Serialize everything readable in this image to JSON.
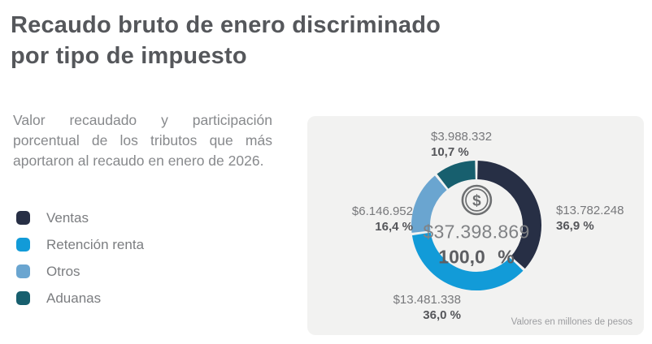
{
  "header": {
    "title_line1": "Recaudo bruto de enero discriminado",
    "title_line2": "por tipo de impuesto",
    "description": "Valor recaudado y participación porcentual de los tributos que más aportaron al recaudo en enero de 2026."
  },
  "chart_data": {
    "type": "pie",
    "subtype": "donut",
    "title": "Recaudo bruto de enero discriminado por tipo de impuesto",
    "unit_note": "Valores en millones de pesos",
    "start_angle_deg": 0,
    "direction": "clockwise",
    "legend_position": "left",
    "series": [
      {
        "name": "Ventas",
        "value": 13782248,
        "value_label": "$13.782.248",
        "pct": 36.9,
        "pct_label": "36,9 %",
        "color": "#272f45"
      },
      {
        "name": "Retención renta",
        "value": 13481338,
        "value_label": "$13.481.338",
        "pct": 36.0,
        "pct_label": "36,0 %",
        "color": "#129bd8"
      },
      {
        "name": "Otros",
        "value": 6146952,
        "value_label": "$6.146.952",
        "pct": 16.4,
        "pct_label": "16,4 %",
        "color": "#6aa5d0"
      },
      {
        "name": "Aduanas",
        "value": 3988332,
        "value_label": "$3.988.332",
        "pct": 10.7,
        "pct_label": "10,7 %",
        "color": "#175f6e"
      }
    ],
    "center": {
      "icon": "dollar-coin",
      "icon_symbol": "$",
      "total": 37398869,
      "total_label": "$37.398.869",
      "total_pct": 100.0,
      "total_pct_label": "100,0 %"
    }
  }
}
